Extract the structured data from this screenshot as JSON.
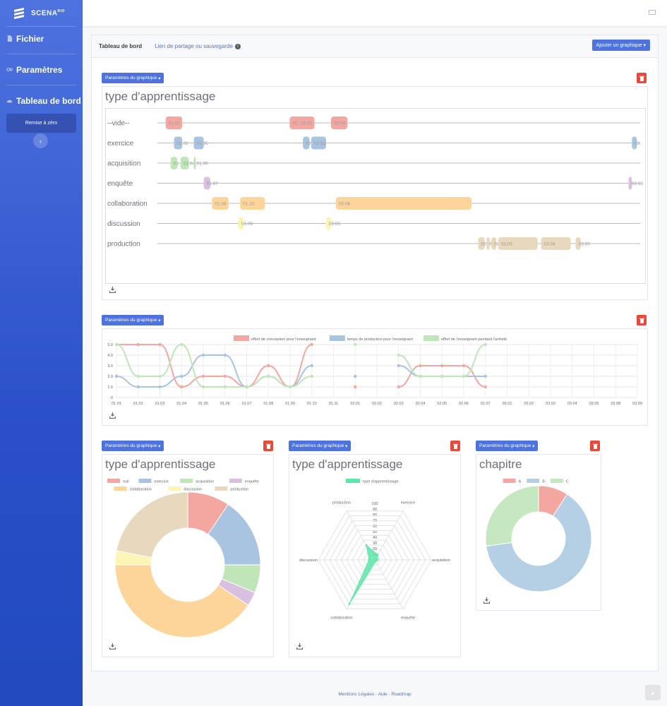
{
  "brand": {
    "name": "SCENARIO",
    "sup": "RIO",
    "name_main": "SCENA"
  },
  "sidebar": {
    "items": [
      {
        "label": "Fichier",
        "icon": "file-icon"
      },
      {
        "label": "Paramètres",
        "icon": "gears-icon"
      },
      {
        "label": "Tableau de bord",
        "icon": "dashboard-icon"
      }
    ],
    "reset_label": "Remise à zéro",
    "collapse_icon": "chevron-left-icon"
  },
  "header": {
    "tab_active": "Tableau de bord",
    "tab_link": "Lien de partage ou sauvegarde",
    "add_chart": "Ajouter un graphique"
  },
  "params_label": "Paramètres du graphique",
  "footer": {
    "mentions": "Mentions Légales",
    "sep": " - ",
    "aide": "Aide",
    "roadmap": "Roadmap"
  },
  "colors": {
    "null": "#f4a6a0",
    "exercice": "#a9c4e0",
    "acquisition": "#bfe5b8",
    "enquete": "#d9bfe0",
    "collaboration": "#fdd59a",
    "discussion": "#fdf5b5",
    "production": "#e8d8bd",
    "A": "#f4a6a0",
    "B": "#b5cfe4",
    "C": "#c5e8c0",
    "radar": "#5ee6a8"
  },
  "chart_data": [
    {
      "type": "timeline",
      "title": "type d'apprentissage",
      "rows": [
        {
          "label": "--vide--",
          "color": "#f4a6a0",
          "segments": [
            {
              "label": "01.01",
              "start": 0.5,
              "end": 1.5
            },
            {
              "label": "02.01",
              "start": 8.0,
              "end": 9.0
            },
            {
              "label": "02.01",
              "start": 8.5,
              "end": 9.5
            },
            {
              "label": "02.04",
              "start": 10.5,
              "end": 11.5
            }
          ]
        },
        {
          "label": "exercice",
          "color": "#a9c4e0",
          "segments": [
            {
              "label": "01.02",
              "start": 1.0,
              "end": 1.5
            },
            {
              "label": "01.05",
              "start": 2.2,
              "end": 2.8
            },
            {
              "label": "02.03",
              "start": 8.8,
              "end": 9.2
            },
            {
              "label": "02.03",
              "start": 9.3,
              "end": 10.2
            },
            {
              "label": "03.",
              "start": 28.7,
              "end": 29.0
            }
          ]
        },
        {
          "label": "acquisition",
          "color": "#bfe5b8",
          "segments": [
            {
              "label": "01.",
              "start": 0.8,
              "end": 1.2
            },
            {
              "label": "01.04",
              "start": 1.4,
              "end": 1.9
            },
            {
              "label": "01.06",
              "start": 2.2,
              "end": 2.3
            }
          ]
        },
        {
          "label": "enquête",
          "color": "#d9bfe0",
          "segments": [
            {
              "label": "01.07",
              "start": 2.8,
              "end": 3.2
            },
            {
              "label": "03.08",
              "start": 28.5,
              "end": 28.7
            }
          ]
        },
        {
          "label": "collaboration",
          "color": "#fdd59a",
          "segments": [
            {
              "label": "01.08",
              "start": 3.3,
              "end": 4.3
            },
            {
              "label": "01.10",
              "start": 5.0,
              "end": 6.5
            },
            {
              "label": "02.06",
              "start": 10.8,
              "end": 19.0
            }
          ]
        },
        {
          "label": "discussion",
          "color": "#fdf5b5",
          "segments": [
            {
              "label": "01.09",
              "start": 4.9,
              "end": 5.2
            },
            {
              "label": "02.05",
              "start": 10.2,
              "end": 10.5
            }
          ]
        },
        {
          "label": "production",
          "color": "#e8d8bd",
          "segments": [
            {
              "label": "02.",
              "start": 19.4,
              "end": 19.8
            },
            {
              "label": "02.",
              "start": 19.9,
              "end": 20.1
            },
            {
              "label": "02.",
              "start": 20.2,
              "end": 20.5
            },
            {
              "label": "03.03",
              "start": 20.6,
              "end": 23.0
            },
            {
              "label": "03.04",
              "start": 23.2,
              "end": 25.0
            },
            {
              "label": "03.05",
              "start": 25.3,
              "end": 25.6
            }
          ]
        }
      ]
    },
    {
      "type": "line",
      "categories": [
        "01.01",
        "01.02",
        "01.03",
        "01.04",
        "01.05",
        "01.06",
        "01.07",
        "01.08",
        "01.09",
        "01.10",
        "01.11",
        "02.01",
        "02.02",
        "02.03",
        "02.04",
        "02.05",
        "02.06",
        "02.07",
        "03.01",
        "03.02",
        "03.03",
        "03.04",
        "03.05",
        "03.08",
        "03.09"
      ],
      "ylim": [
        0,
        5
      ],
      "yticks": [
        "0",
        "1.0",
        "2.0",
        "3.0",
        "4.0",
        "5.0"
      ],
      "series": [
        {
          "name": "effort de conception pour l'enseignant",
          "color": "#f4a6a0",
          "values": [
            5,
            5,
            5,
            1,
            2,
            2,
            1,
            3,
            1,
            5,
            null,
            1,
            null,
            1,
            3,
            3,
            3,
            1,
            null,
            null,
            null,
            null,
            null,
            null,
            null
          ]
        },
        {
          "name": "temps de production pour l'enseignant",
          "color": "#a9c4e0",
          "values": [
            2,
            1,
            1,
            2,
            4,
            4,
            1,
            2,
            1,
            3,
            null,
            2,
            null,
            3,
            2,
            2,
            2,
            2,
            null,
            null,
            null,
            null,
            null,
            null,
            null
          ]
        },
        {
          "name": "effort de l'enseignant pendant l'activité",
          "color": "#bfe5b8",
          "values": [
            5,
            2,
            2,
            5,
            1,
            1,
            1,
            2,
            1,
            2,
            null,
            5,
            null,
            4,
            2,
            2,
            2,
            5,
            null,
            null,
            null,
            null,
            null,
            null,
            null
          ]
        }
      ]
    },
    {
      "type": "pie",
      "title": "type d'apprentissage",
      "legend": [
        "null",
        "exercice",
        "acquisition",
        "enquête",
        "collaboration",
        "discussion",
        "production"
      ],
      "values": [
        3,
        5,
        2,
        1,
        13,
        1,
        7
      ]
    },
    {
      "type": "radar",
      "title": "type d'apprentissage",
      "series_name": "type d'apprentissage",
      "axes": [
        "exercice",
        "acquisition",
        "enquête",
        "collaboration",
        "discussion",
        "production"
      ],
      "ticks": [
        "10",
        "20",
        "30",
        "40",
        "50",
        "60",
        "70",
        "80",
        "90",
        "100"
      ],
      "values": [
        10,
        5,
        3,
        90,
        10,
        30
      ],
      "rmax": 100
    },
    {
      "type": "pie",
      "title": "chapitre",
      "legend": [
        "A",
        "B",
        "C"
      ],
      "values": [
        4,
        28,
        12
      ]
    }
  ]
}
